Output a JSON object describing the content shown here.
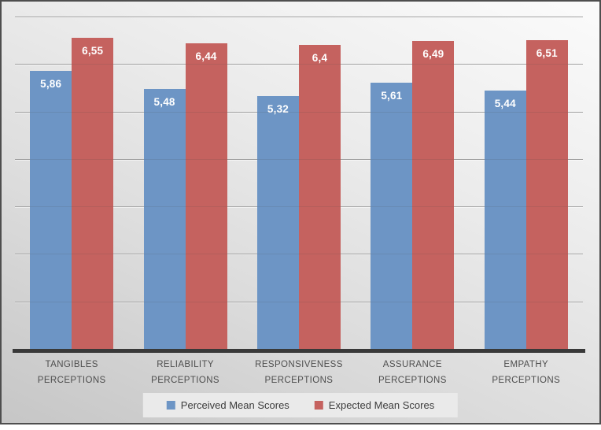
{
  "chart_data": {
    "type": "bar",
    "title": "",
    "categories": [
      "TANGIBLES PERCEPTIONS",
      "RELIABILITY PERCEPTIONS",
      "RESPONSIVENESS PERCEPTIONS",
      "ASSURANCE PERCEPTIONS",
      "EMPATHY PERCEPTIONS"
    ],
    "series": [
      {
        "name": "Perceived Mean Scores",
        "color": "#6D95C5",
        "values": [
          5.86,
          5.48,
          5.32,
          5.61,
          5.44
        ],
        "labels": [
          "5,86",
          "5,48",
          "5,32",
          "5,61",
          "5,44"
        ]
      },
      {
        "name": "Expected Mean Scores",
        "color": "#C5625F",
        "values": [
          6.55,
          6.44,
          6.4,
          6.49,
          6.51
        ],
        "labels": [
          "6,55",
          "6,44",
          "6,4",
          "6,49",
          "6,51"
        ]
      }
    ],
    "xlabel": "",
    "ylabel": "",
    "ylim": [
      0,
      7
    ],
    "gridline_step": 1,
    "y_axis_labels_visible": false,
    "grid": "horizontal",
    "legend_position": "bottom",
    "value_label_color": "#ffffff",
    "axis_line_color": "#393939",
    "category_label_color": "#4e4e4e"
  }
}
